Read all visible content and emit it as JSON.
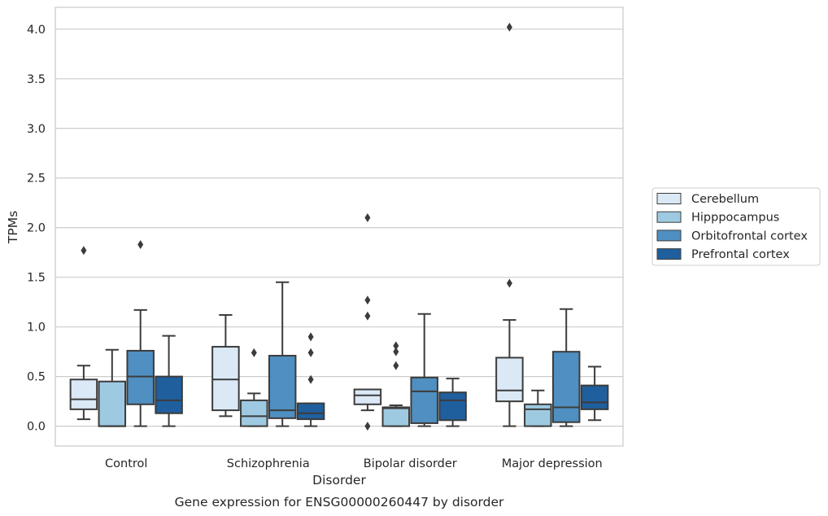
{
  "chart_data": {
    "type": "box",
    "caption": "Gene expression for ENSG00000260447 by disorder",
    "xlabel": "Disorder",
    "ylabel": "TPMs",
    "ylim": [
      -0.2,
      4.22
    ],
    "yticks": [
      0.0,
      0.5,
      1.0,
      1.5,
      2.0,
      2.5,
      3.0,
      3.5,
      4.0
    ],
    "ytick_labels": [
      "0.0",
      "0.5",
      "1.0",
      "1.5",
      "2.0",
      "2.5",
      "3.0",
      "3.5",
      "4.0"
    ],
    "grid": "horizontal",
    "legend_position": "right",
    "categories": [
      "Control",
      "Schizophrenia",
      "Bipolar disorder",
      "Major depression"
    ],
    "series": [
      {
        "name": "Cerebellum",
        "color": "#dbe9f6",
        "boxes": [
          {
            "whisker_low": 0.07,
            "q1": 0.17,
            "median": 0.27,
            "q3": 0.47,
            "whisker_high": 0.61,
            "outliers": [
              1.77
            ]
          },
          {
            "whisker_low": 0.1,
            "q1": 0.16,
            "median": 0.47,
            "q3": 0.8,
            "whisker_high": 1.12,
            "outliers": []
          },
          {
            "whisker_low": 0.16,
            "q1": 0.22,
            "median": 0.31,
            "q3": 0.37,
            "whisker_high": 0.37,
            "outliers": [
              0.0,
              1.11,
              1.27,
              2.1
            ]
          },
          {
            "whisker_low": 0.0,
            "q1": 0.25,
            "median": 0.36,
            "q3": 0.69,
            "whisker_high": 1.07,
            "outliers": [
              1.44,
              4.02
            ]
          }
        ]
      },
      {
        "name": "Hipppocampus",
        "color": "#9ecae1",
        "boxes": [
          {
            "whisker_low": 0.0,
            "q1": 0.0,
            "median": 0.0,
            "q3": 0.45,
            "whisker_high": 0.77,
            "outliers": []
          },
          {
            "whisker_low": 0.0,
            "q1": 0.0,
            "median": 0.1,
            "q3": 0.26,
            "whisker_high": 0.33,
            "outliers": [
              0.74
            ]
          },
          {
            "whisker_low": 0.0,
            "q1": 0.0,
            "median": 0.18,
            "q3": 0.19,
            "whisker_high": 0.21,
            "outliers": [
              0.61,
              0.75,
              0.81
            ]
          },
          {
            "whisker_low": 0.0,
            "q1": 0.0,
            "median": 0.17,
            "q3": 0.22,
            "whisker_high": 0.36,
            "outliers": []
          }
        ]
      },
      {
        "name": "Orbitofrontal cortex",
        "color": "#4f8fc1",
        "boxes": [
          {
            "whisker_low": 0.0,
            "q1": 0.22,
            "median": 0.5,
            "q3": 0.76,
            "whisker_high": 1.17,
            "outliers": [
              1.83
            ]
          },
          {
            "whisker_low": 0.0,
            "q1": 0.08,
            "median": 0.16,
            "q3": 0.71,
            "whisker_high": 1.45,
            "outliers": []
          },
          {
            "whisker_low": 0.0,
            "q1": 0.03,
            "median": 0.35,
            "q3": 0.49,
            "whisker_high": 1.13,
            "outliers": []
          },
          {
            "whisker_low": 0.0,
            "q1": 0.04,
            "median": 0.19,
            "q3": 0.75,
            "whisker_high": 1.18,
            "outliers": []
          }
        ]
      },
      {
        "name": "Prefrontal cortex",
        "color": "#1f5f9e",
        "boxes": [
          {
            "whisker_low": 0.0,
            "q1": 0.13,
            "median": 0.26,
            "q3": 0.5,
            "whisker_high": 0.91,
            "outliers": []
          },
          {
            "whisker_low": 0.0,
            "q1": 0.07,
            "median": 0.13,
            "q3": 0.23,
            "whisker_high": 0.23,
            "outliers": [
              0.47,
              0.74,
              0.9
            ]
          },
          {
            "whisker_low": 0.0,
            "q1": 0.06,
            "median": 0.26,
            "q3": 0.34,
            "whisker_high": 0.48,
            "outliers": []
          },
          {
            "whisker_low": 0.06,
            "q1": 0.17,
            "median": 0.24,
            "q3": 0.41,
            "whisker_high": 0.6,
            "outliers": []
          }
        ]
      }
    ]
  }
}
